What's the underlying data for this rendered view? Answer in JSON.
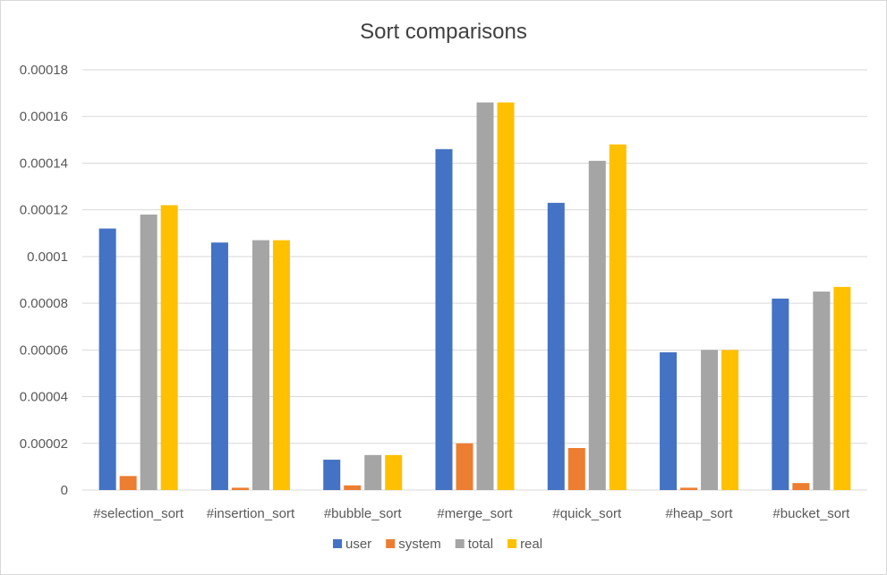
{
  "chart_data": {
    "type": "bar",
    "title": "Sort comparisons",
    "xlabel": "",
    "ylabel": "",
    "categories": [
      "#selection_sort",
      "#insertion_sort",
      "#bubble_sort",
      "#merge_sort",
      "#quick_sort",
      "#heap_sort",
      "#bucket_sort"
    ],
    "series": [
      {
        "name": "user",
        "color": "#4472C4",
        "values": [
          0.000112,
          0.000106,
          1.3e-05,
          0.000146,
          0.000123,
          5.9e-05,
          8.2e-05
        ]
      },
      {
        "name": "system",
        "color": "#ED7D31",
        "values": [
          6e-06,
          1e-06,
          2e-06,
          2e-05,
          1.8e-05,
          1e-06,
          3e-06
        ]
      },
      {
        "name": "total",
        "color": "#A5A5A5",
        "values": [
          0.000118,
          0.000107,
          1.5e-05,
          0.000166,
          0.000141,
          6e-05,
          8.5e-05
        ]
      },
      {
        "name": "real",
        "color": "#FFC000",
        "values": [
          0.000122,
          0.000107,
          1.5e-05,
          0.000166,
          0.000148,
          6e-05,
          8.7e-05
        ]
      }
    ],
    "ylim": [
      0,
      0.00018
    ],
    "yticks": [
      "0",
      "0.00002",
      "0.00004",
      "0.00006",
      "0.00008",
      "0.0001",
      "0.00012",
      "0.00014",
      "0.00016",
      "0.00018"
    ],
    "grid": true,
    "legend_position": "bottom"
  }
}
